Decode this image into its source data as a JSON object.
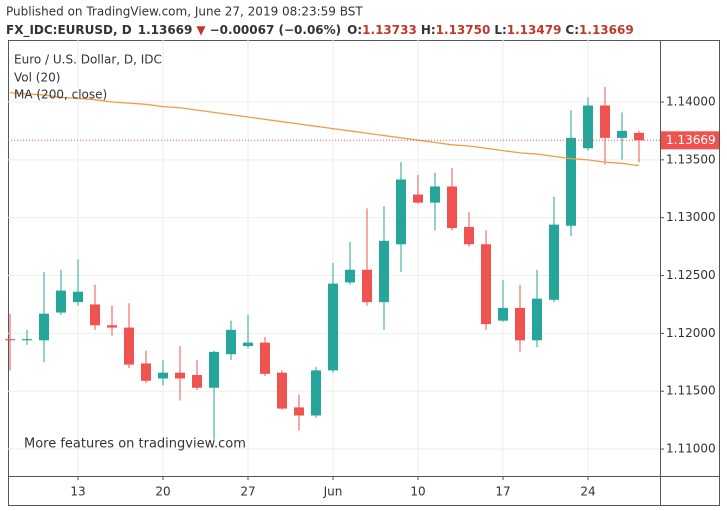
{
  "header": {
    "published": "Published on TradingView.com, June 27, 2019 08:23:59 BST",
    "symbol": "FX_IDC:EURUSD, D",
    "last": "1.13669",
    "arrow": "▼",
    "change": "−0.00067 (−0.06%)",
    "ohlc": [
      {
        "label": "O:",
        "value": "1.13733"
      },
      {
        "label": "H:",
        "value": "1.13750"
      },
      {
        "label": "L:",
        "value": "1.13479"
      },
      {
        "label": "C:",
        "value": "1.13669"
      }
    ]
  },
  "chart_data": {
    "type": "candlestick",
    "title": "Euro / U.S. Dollar, D, IDC",
    "legend": [
      "Vol (20)"
    ],
    "annotation": "More features on tradingview.com",
    "categories": [
      null,
      null,
      null,
      null,
      "13",
      null,
      null,
      null,
      null,
      "20",
      null,
      null,
      null,
      null,
      "27",
      null,
      null,
      null,
      null,
      "Jun",
      null,
      null,
      null,
      null,
      "10",
      null,
      null,
      null,
      null,
      "17",
      null,
      null,
      null,
      null,
      "24",
      null,
      null,
      null
    ],
    "open": [
      1.1195,
      1.1194,
      1.1194,
      1.1218,
      1.1227,
      1.1225,
      1.1207,
      1.1205,
      1.1174,
      1.1161,
      1.1166,
      1.1164,
      1.1153,
      1.1182,
      1.1189,
      1.1192,
      1.1166,
      1.1136,
      1.1129,
      1.1168,
      1.1244,
      1.1255,
      1.1227,
      1.1277,
      1.132,
      1.1313,
      1.1327,
      1.1292,
      1.1277,
      1.1211,
      1.1222,
      1.1194,
      1.1229,
      1.1293,
      1.136,
      1.1397,
      1.1369,
      1.13733
    ],
    "high": [
      1.1217,
      1.1203,
      1.1253,
      1.1255,
      1.1264,
      1.1242,
      1.1224,
      1.1226,
      1.1185,
      1.1177,
      1.1189,
      1.1177,
      1.1185,
      1.1211,
      1.1216,
      1.1197,
      1.1168,
      1.1147,
      1.1171,
      1.1261,
      1.1279,
      1.1308,
      1.131,
      1.1348,
      1.1337,
      1.1339,
      1.1343,
      1.1305,
      1.1289,
      1.1246,
      1.1242,
      1.1255,
      1.1318,
      1.1393,
      1.1404,
      1.1413,
      1.1391,
      1.1375
    ],
    "low": [
      1.1168,
      1.119,
      1.1175,
      1.1216,
      1.1224,
      1.1203,
      1.1198,
      1.117,
      1.1157,
      1.1155,
      1.1142,
      1.1151,
      1.1108,
      1.1177,
      1.1187,
      1.1163,
      1.1134,
      1.1116,
      1.1127,
      1.1166,
      1.1242,
      1.1224,
      1.1203,
      1.1253,
      1.1312,
      1.1289,
      1.1289,
      1.1275,
      1.1203,
      1.121,
      1.1184,
      1.1188,
      1.1227,
      1.1284,
      1.1358,
      1.1346,
      1.135,
      1.13479
    ],
    "close": [
      1.1194,
      1.1195,
      1.1217,
      1.1237,
      1.1236,
      1.1207,
      1.1205,
      1.1173,
      1.1159,
      1.1166,
      1.1161,
      1.1153,
      1.1184,
      1.1203,
      1.1192,
      1.1165,
      1.1135,
      1.1129,
      1.1168,
      1.1243,
      1.1255,
      1.1227,
      1.128,
      1.1333,
      1.1313,
      1.1327,
      1.1291,
      1.1277,
      1.1208,
      1.1222,
      1.1194,
      1.123,
      1.1294,
      1.1369,
      1.1397,
      1.1369,
      1.1375,
      1.13669
    ],
    "up_color": "#26a69a",
    "down_color": "#ef5350",
    "series": [
      {
        "name": "MA (200, close)",
        "color": "#f39c45",
        "values": [
          1.1408,
          1.1407,
          1.1406,
          1.1404,
          1.1403,
          1.1402,
          1.14,
          1.1399,
          1.1398,
          1.1396,
          1.1395,
          1.1393,
          1.1391,
          1.1389,
          1.1387,
          1.1385,
          1.1383,
          1.1381,
          1.1379,
          1.1377,
          1.1375,
          1.1373,
          1.1371,
          1.1369,
          1.1367,
          1.1365,
          1.1363,
          1.1362,
          1.136,
          1.1358,
          1.1356,
          1.1355,
          1.1353,
          1.1351,
          1.135,
          1.1348,
          1.1347,
          1.1345
        ]
      }
    ],
    "ylim": [
      1.10767,
      1.14536
    ],
    "yticks": [
      {
        "value": 1.11,
        "label": "1.11000"
      },
      {
        "value": 1.115,
        "label": "1.11500"
      },
      {
        "value": 1.12,
        "label": "1.12000"
      },
      {
        "value": 1.125,
        "label": "1.12500"
      },
      {
        "value": 1.13,
        "label": "1.13000"
      },
      {
        "value": 1.135,
        "label": "1.13500"
      },
      {
        "value": 1.14,
        "label": "1.14000"
      }
    ],
    "grid": true
  }
}
